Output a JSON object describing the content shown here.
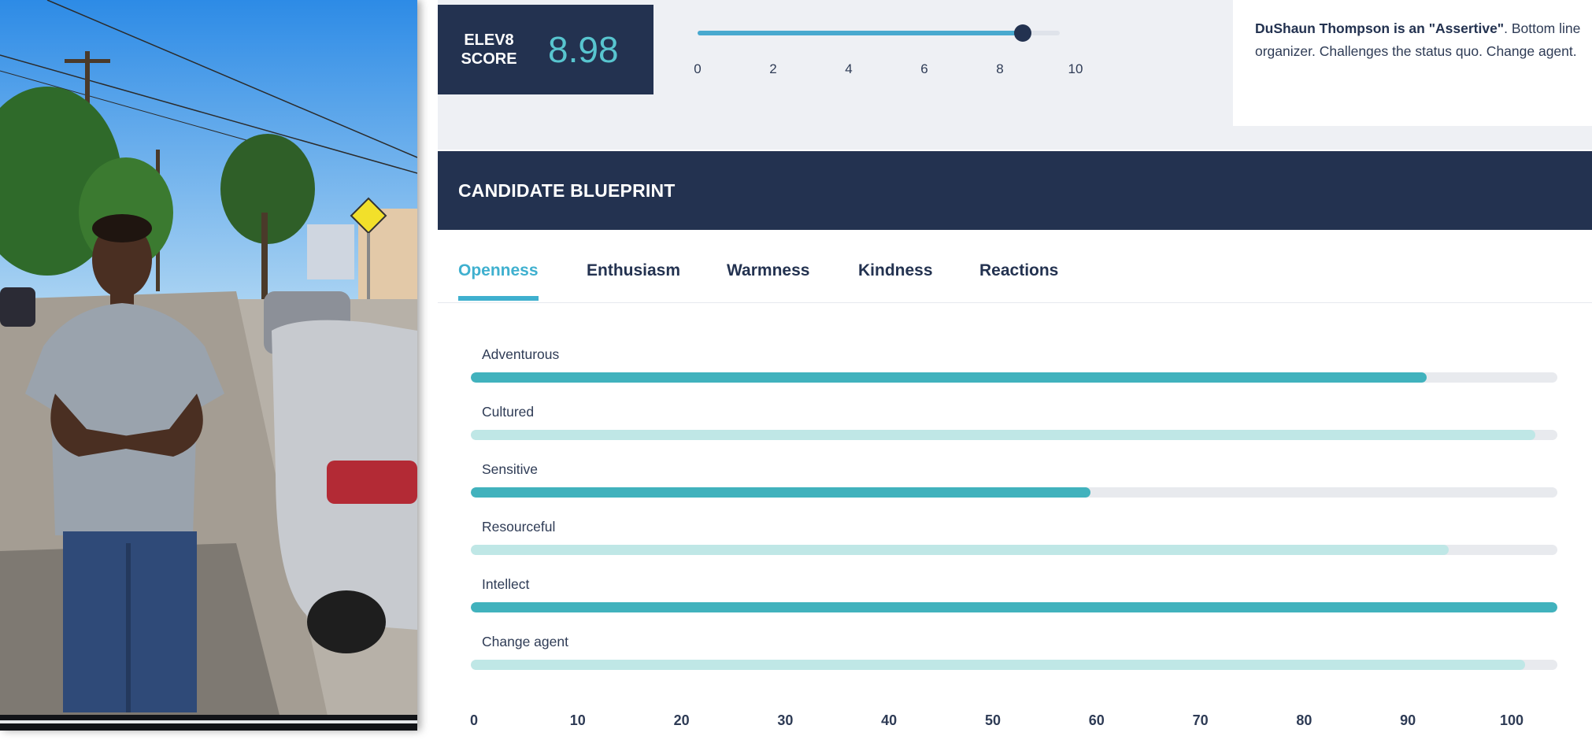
{
  "score": {
    "label_line1": "ELEV8",
    "label_line2": "SCORE",
    "value": "8.98",
    "value_numeric": 8.98,
    "slider_min": 0,
    "slider_max": 10,
    "ticks": [
      "0",
      "2",
      "4",
      "6",
      "8",
      "10"
    ]
  },
  "description": {
    "name_bold": "DuShaun Thompson is an \"Assertive\"",
    "rest": ". Bottom line organizer. Challenges the status quo. Change agent."
  },
  "blueprint": {
    "title": "CANDIDATE BLUEPRINT",
    "tabs": [
      {
        "label": "Openness",
        "active": true
      },
      {
        "label": "Enthusiasm",
        "active": false
      },
      {
        "label": "Warmness",
        "active": false
      },
      {
        "label": "Kindness",
        "active": false
      },
      {
        "label": "Reactions",
        "active": false
      }
    ],
    "traits": [
      {
        "label": "Adventurous",
        "value": 88,
        "style": "strong"
      },
      {
        "label": "Cultured",
        "value": 98,
        "style": "light"
      },
      {
        "label": "Sensitive",
        "value": 57,
        "style": "strong"
      },
      {
        "label": "Resourceful",
        "value": 90,
        "style": "light"
      },
      {
        "label": "Intellect",
        "value": 100,
        "style": "strong"
      },
      {
        "label": "Change agent",
        "value": 97,
        "style": "light"
      }
    ],
    "axis_ticks": [
      "0",
      "10",
      "20",
      "30",
      "40",
      "50",
      "60",
      "70",
      "80",
      "90",
      "100"
    ],
    "axis_min": 0,
    "axis_max": 100
  },
  "colors": {
    "navy": "#233250",
    "accent": "#3fb0cf",
    "teal_strong": "#41b2bd",
    "teal_light": "#bfe7e6"
  }
}
